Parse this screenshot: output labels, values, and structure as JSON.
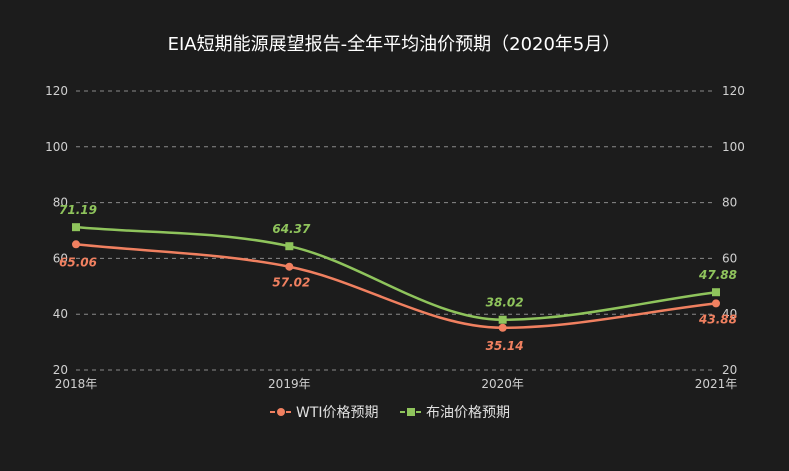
{
  "chart_data": {
    "type": "line",
    "title": "EIA短期能源展望报告-全年平均油价预期（2020年5月）",
    "categories": [
      "2018年",
      "2019年",
      "2020年",
      "2021年"
    ],
    "ylim": [
      20,
      120
    ],
    "yticks": [
      20,
      40,
      60,
      80,
      100,
      120
    ],
    "grid": true,
    "grid_style": "dashed",
    "dual_y_axis": true,
    "legend_position": "bottom",
    "smooth": true,
    "series": [
      {
        "name": "WTI价格预期",
        "values": [
          65.06,
          57.02,
          35.14,
          43.88
        ],
        "labels": [
          "65.06",
          "57.02",
          "35.14",
          "43.88"
        ],
        "color": "#f08060",
        "marker": "circle"
      },
      {
        "name": "布油价格预期",
        "values": [
          71.19,
          64.37,
          38.02,
          47.88
        ],
        "labels": [
          "71.19",
          "64.37",
          "38.02",
          "47.88"
        ],
        "color": "#8fc45c",
        "marker": "square"
      }
    ]
  },
  "colors": {
    "background": "#1c1c1c",
    "grid": "#8a8a8a",
    "text": "#d0d0d0"
  }
}
